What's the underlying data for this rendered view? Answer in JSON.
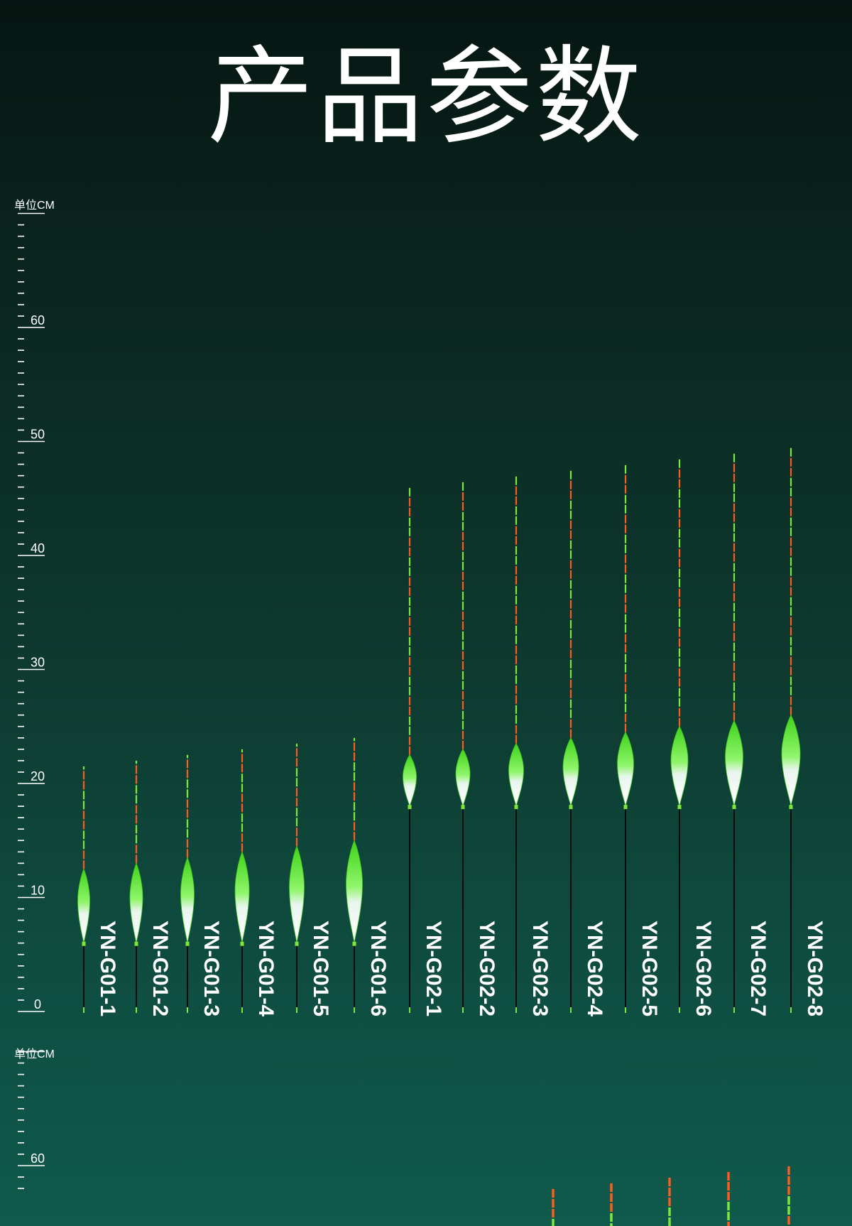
{
  "title": "产品参数",
  "unit_label": "单位CM",
  "chart_data": [
    {
      "type": "other",
      "unit": "CM",
      "ylim": [
        0,
        70
      ],
      "ytick_labels": [
        "0",
        "10",
        "20",
        "30",
        "40",
        "50",
        "60"
      ],
      "models": [
        "YN-G01-1",
        "YN-G01-2",
        "YN-G01-3",
        "YN-G01-4",
        "YN-G01-5",
        "YN-G01-6",
        "YN-G02-1",
        "YN-G02-2",
        "YN-G02-3",
        "YN-G02-4",
        "YN-G02-5",
        "YN-G02-6",
        "YN-G02-7",
        "YN-G02-8"
      ],
      "total_length_cm": [
        21.5,
        22,
        22.5,
        23,
        23.5,
        24,
        46,
        46.5,
        47,
        47.5,
        48,
        48.5,
        49,
        49.5
      ]
    },
    {
      "type": "other",
      "unit": "CM",
      "ytick_labels": [
        "60"
      ]
    }
  ],
  "colors": {
    "accent_green": "#7ee83a",
    "tip_orange": "#ff5a1f",
    "text": "#ffffff"
  }
}
